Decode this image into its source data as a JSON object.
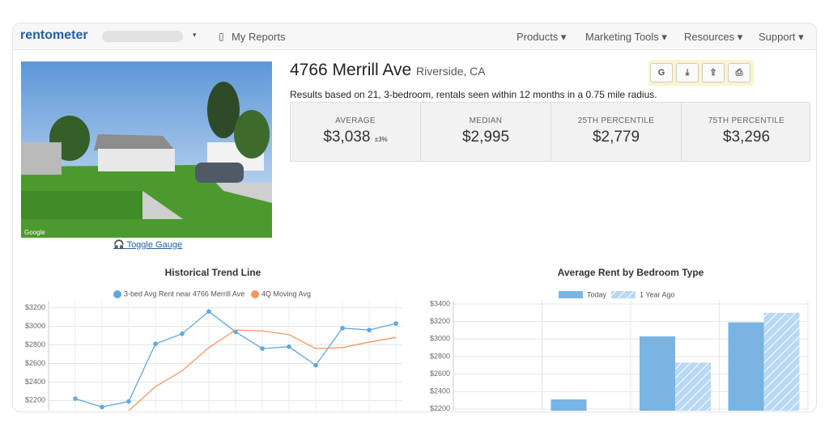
{
  "nav": {
    "brand": "rentometer",
    "my_reports": "My Reports",
    "menu": [
      "Products",
      "Marketing Tools",
      "Resources",
      "Support"
    ]
  },
  "property": {
    "address": "4766 Merrill Ave",
    "city": "Riverside, CA",
    "summary": "Results based on 21, 3-bedroom, rentals seen within 12 months in a 0.75 mile radius.",
    "toggle": "Toggle Gauge",
    "buttons": [
      "G"
    ]
  },
  "stats": [
    {
      "label": "AVERAGE",
      "value": "$3,038",
      "note": "±3%"
    },
    {
      "label": "MEDIAN",
      "value": "$2,995"
    },
    {
      "label": "25TH PERCENTILE",
      "value": "$2,779"
    },
    {
      "label": "75TH PERCENTILE",
      "value": "$3,296"
    }
  ],
  "chart_data": [
    {
      "type": "line",
      "title": "Historical Trend Line",
      "categories": [
        null,
        null,
        null,
        null,
        null,
        null,
        null,
        null,
        null,
        null,
        null,
        null,
        null
      ],
      "series": [
        {
          "name": "3-bed Avg Rent near 4766 Merrill Ave",
          "color": "#5fa8de",
          "values": [
            2220,
            2130,
            2190,
            2810,
            2920,
            3160,
            2940,
            2760,
            2780,
            2580,
            2980,
            2960,
            3030
          ]
        },
        {
          "name": "4Q Moving Avg",
          "color": "#f29660",
          "values": [
            null,
            null,
            2090,
            2350,
            2520,
            2770,
            2960,
            2950,
            2910,
            2760,
            2770,
            2830,
            2880
          ]
        }
      ],
      "ylim": [
        2090,
        3240
      ],
      "yticks": [
        {
          "value": 2200,
          "label": "$2200"
        },
        {
          "value": 2400,
          "label": "$2400"
        },
        {
          "value": 2600,
          "label": "$2600"
        },
        {
          "value": 2800,
          "label": "$2800"
        },
        {
          "value": 3000,
          "label": "$3000"
        },
        {
          "value": 3200,
          "label": "$3200"
        }
      ],
      "grid": true
    },
    {
      "type": "bar",
      "title": "Average Rent by Bedroom Type",
      "categories": [
        null,
        null,
        null,
        null
      ],
      "series": [
        {
          "name": "Today",
          "color": "#7ab4e2",
          "values": [
            null,
            2310,
            3030,
            3190
          ]
        },
        {
          "name": "1 Year Ago",
          "color": "#b9d8f2",
          "pattern": "hatch",
          "values": [
            null,
            null,
            2730,
            3300
          ]
        }
      ],
      "ylim": [
        2180,
        3400
      ],
      "yticks": [
        {
          "value": 2200,
          "label": "$2200"
        },
        {
          "value": 2400,
          "label": "$2400"
        },
        {
          "value": 2600,
          "label": "$2600"
        },
        {
          "value": 2800,
          "label": "$2800"
        },
        {
          "value": 3000,
          "label": "$3000"
        },
        {
          "value": 3200,
          "label": "$3200"
        },
        {
          "value": 3400,
          "label": "$3400"
        }
      ],
      "grid": true
    }
  ]
}
